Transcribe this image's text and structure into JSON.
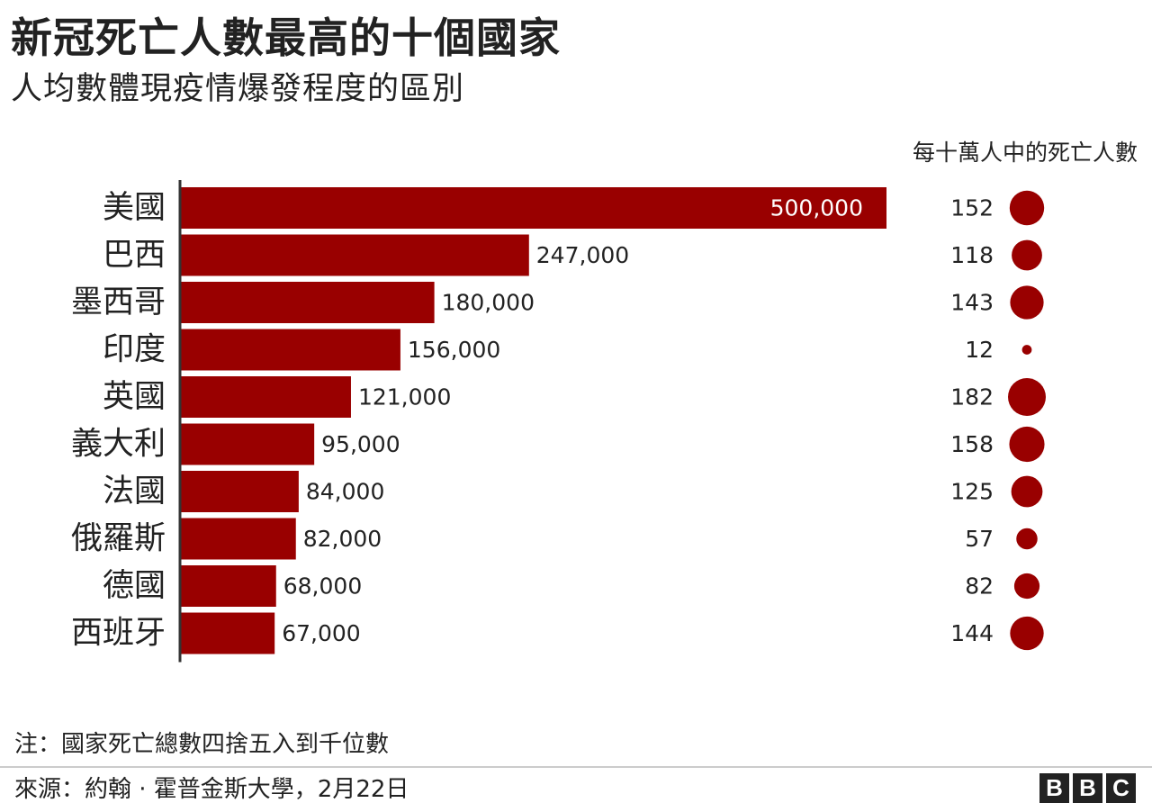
{
  "header": {
    "title": "新冠死亡人數最高的十個國家",
    "subtitle": "人均數體現疫情爆發程度的區別",
    "per_capita_label": "每十萬人中的死亡人數"
  },
  "footer": {
    "note": "注：國家死亡總數四捨五入到千位數",
    "source": "來源：約翰 · 霍普金斯大學，2月22日",
    "logo_letters": [
      "B",
      "B",
      "C"
    ]
  },
  "colors": {
    "bar": "#990000",
    "axis": "#333333",
    "text": "#222222",
    "inside_label": "#ffffff"
  },
  "chart_data": {
    "type": "bar",
    "orientation": "horizontal",
    "title": "新冠死亡人數最高的十個國家",
    "subtitle": "人均數體現疫情爆發程度的區別",
    "categories": [
      "美國",
      "巴西",
      "墨西哥",
      "印度",
      "英國",
      "義大利",
      "法國",
      "俄羅斯",
      "德國",
      "西班牙"
    ],
    "values": [
      500000,
      247000,
      180000,
      156000,
      121000,
      95000,
      84000,
      82000,
      68000,
      67000
    ],
    "value_labels": [
      "500,000",
      "247,000",
      "180,000",
      "156,000",
      "121,000",
      "95,000",
      "84,000",
      "82,000",
      "68,000",
      "67,000"
    ],
    "xlim": [
      0,
      500000
    ],
    "grid": false,
    "per_capita": {
      "label": "每十萬人中的死亡人數",
      "values": [
        152,
        118,
        143,
        12,
        182,
        158,
        125,
        57,
        82,
        144
      ],
      "encoding": "circle-area"
    }
  }
}
